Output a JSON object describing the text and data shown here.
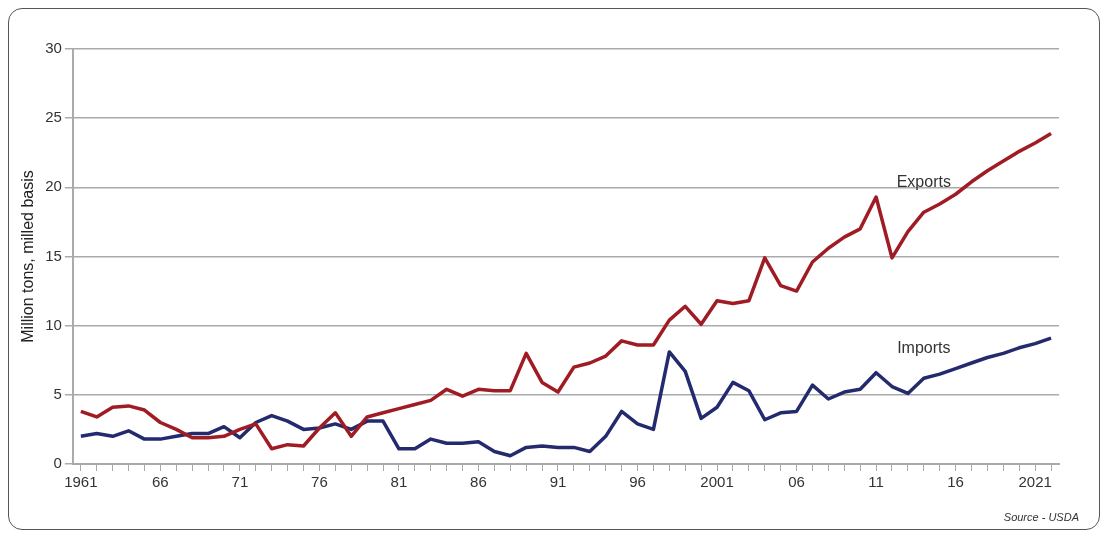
{
  "chart_data": {
    "type": "line",
    "ylabel": "Million tons, milled basis",
    "x": [
      1961,
      1962,
      1963,
      1964,
      1965,
      1966,
      1967,
      1968,
      1969,
      1970,
      1971,
      1972,
      1973,
      1974,
      1975,
      1976,
      1977,
      1978,
      1979,
      1980,
      1981,
      1982,
      1983,
      1984,
      1985,
      1986,
      1987,
      1988,
      1989,
      1990,
      1991,
      1992,
      1993,
      1994,
      1995,
      1996,
      1997,
      1998,
      1999,
      2000,
      2001,
      2002,
      2003,
      2004,
      2005,
      2006,
      2007,
      2008,
      2009,
      2010,
      2011,
      2012,
      2013,
      2014,
      2015,
      2016,
      2017,
      2018,
      2019,
      2020,
      2021,
      2022
    ],
    "series": [
      {
        "name": "Exports",
        "color": "#a01c24",
        "values": [
          3.8,
          3.4,
          4.1,
          4.2,
          3.9,
          3.0,
          2.5,
          1.9,
          1.9,
          2.0,
          2.5,
          2.9,
          1.1,
          1.4,
          1.3,
          2.6,
          3.7,
          2.0,
          3.4,
          3.7,
          4.0,
          4.3,
          4.6,
          5.4,
          4.9,
          5.4,
          5.3,
          5.3,
          8.0,
          5.9,
          5.2,
          7.0,
          7.3,
          7.8,
          8.9,
          8.6,
          8.6,
          10.4,
          11.4,
          10.1,
          11.8,
          11.6,
          11.8,
          14.9,
          12.9,
          12.5,
          14.6,
          15.6,
          16.4,
          17.0,
          19.3,
          14.9,
          16.8,
          18.2,
          18.8,
          19.5,
          20.4,
          21.2,
          21.9,
          22.6,
          23.2,
          23.9
        ]
      },
      {
        "name": "Imports",
        "color": "#232a6e",
        "values": [
          2.0,
          2.2,
          2.0,
          2.4,
          1.8,
          1.8,
          2.0,
          2.2,
          2.2,
          2.7,
          1.9,
          3.0,
          3.5,
          3.1,
          2.5,
          2.6,
          2.9,
          2.5,
          3.1,
          3.1,
          1.1,
          1.1,
          1.8,
          1.5,
          1.5,
          1.6,
          0.9,
          0.6,
          1.2,
          1.3,
          1.2,
          1.2,
          0.9,
          2.0,
          3.8,
          2.9,
          2.5,
          8.1,
          6.7,
          3.3,
          4.1,
          5.9,
          5.3,
          3.2,
          3.7,
          3.8,
          5.7,
          4.7,
          5.2,
          5.4,
          6.6,
          5.6,
          5.1,
          6.2,
          6.5,
          6.9,
          7.3,
          7.7,
          8.0,
          8.4,
          8.7,
          9.1
        ]
      }
    ],
    "xlim": [
      1960.5,
      2022.5
    ],
    "xticks": [
      {
        "value": 1961,
        "label": "1961"
      },
      {
        "value": 1962,
        "label": null
      },
      {
        "value": 1963,
        "label": null
      },
      {
        "value": 1964,
        "label": null
      },
      {
        "value": 1965,
        "label": null
      },
      {
        "value": 1966,
        "label": "66"
      },
      {
        "value": 1967,
        "label": null
      },
      {
        "value": 1968,
        "label": null
      },
      {
        "value": 1969,
        "label": null
      },
      {
        "value": 1970,
        "label": null
      },
      {
        "value": 1971,
        "label": "71"
      },
      {
        "value": 1972,
        "label": null
      },
      {
        "value": 1973,
        "label": null
      },
      {
        "value": 1974,
        "label": null
      },
      {
        "value": 1975,
        "label": null
      },
      {
        "value": 1976,
        "label": "76"
      },
      {
        "value": 1977,
        "label": null
      },
      {
        "value": 1978,
        "label": null
      },
      {
        "value": 1979,
        "label": null
      },
      {
        "value": 1980,
        "label": null
      },
      {
        "value": 1981,
        "label": "81"
      },
      {
        "value": 1982,
        "label": null
      },
      {
        "value": 1983,
        "label": null
      },
      {
        "value": 1984,
        "label": null
      },
      {
        "value": 1985,
        "label": null
      },
      {
        "value": 1986,
        "label": "86"
      },
      {
        "value": 1987,
        "label": null
      },
      {
        "value": 1988,
        "label": null
      },
      {
        "value": 1989,
        "label": null
      },
      {
        "value": 1990,
        "label": null
      },
      {
        "value": 1991,
        "label": "91"
      },
      {
        "value": 1992,
        "label": null
      },
      {
        "value": 1993,
        "label": null
      },
      {
        "value": 1994,
        "label": null
      },
      {
        "value": 1995,
        "label": null
      },
      {
        "value": 1996,
        "label": "96"
      },
      {
        "value": 1997,
        "label": null
      },
      {
        "value": 1998,
        "label": null
      },
      {
        "value": 1999,
        "label": null
      },
      {
        "value": 2000,
        "label": null
      },
      {
        "value": 2001,
        "label": "2001"
      },
      {
        "value": 2002,
        "label": null
      },
      {
        "value": 2003,
        "label": null
      },
      {
        "value": 2004,
        "label": null
      },
      {
        "value": 2005,
        "label": null
      },
      {
        "value": 2006,
        "label": "06"
      },
      {
        "value": 2007,
        "label": null
      },
      {
        "value": 2008,
        "label": null
      },
      {
        "value": 2009,
        "label": null
      },
      {
        "value": 2010,
        "label": null
      },
      {
        "value": 2011,
        "label": "11"
      },
      {
        "value": 2012,
        "label": null
      },
      {
        "value": 2013,
        "label": null
      },
      {
        "value": 2014,
        "label": null
      },
      {
        "value": 2015,
        "label": null
      },
      {
        "value": 2016,
        "label": "16"
      },
      {
        "value": 2017,
        "label": null
      },
      {
        "value": 2018,
        "label": null
      },
      {
        "value": 2019,
        "label": null
      },
      {
        "value": 2020,
        "label": null
      },
      {
        "value": 2021,
        "label": "2021"
      },
      {
        "value": 2022,
        "label": null
      }
    ],
    "ylim": [
      0,
      30
    ],
    "yticks": [
      0,
      5,
      10,
      15,
      20,
      25,
      30
    ],
    "grid": "y",
    "legend": false,
    "marker": "none",
    "line_style": "solid",
    "annotations": [
      "Source - USDA"
    ]
  }
}
